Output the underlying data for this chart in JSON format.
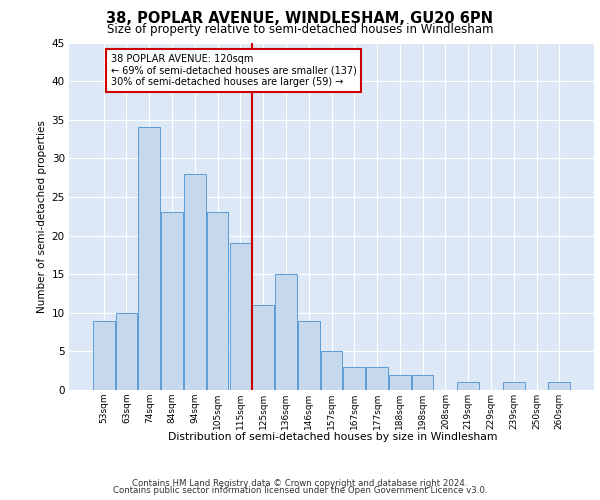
{
  "title": "38, POPLAR AVENUE, WINDLESHAM, GU20 6PN",
  "subtitle": "Size of property relative to semi-detached houses in Windlesham",
  "xlabel": "Distribution of semi-detached houses by size in Windlesham",
  "ylabel": "Number of semi-detached properties",
  "bins": [
    "53sqm",
    "63sqm",
    "74sqm",
    "84sqm",
    "94sqm",
    "105sqm",
    "115sqm",
    "125sqm",
    "136sqm",
    "146sqm",
    "157sqm",
    "167sqm",
    "177sqm",
    "188sqm",
    "198sqm",
    "208sqm",
    "219sqm",
    "229sqm",
    "239sqm",
    "250sqm",
    "260sqm"
  ],
  "values": [
    9,
    10,
    34,
    23,
    28,
    23,
    19,
    11,
    15,
    9,
    5,
    3,
    3,
    2,
    2,
    0,
    1,
    0,
    1,
    0,
    1
  ],
  "bar_color": "#c5d8ec",
  "bar_edge_color": "#5b9bd5",
  "vline_x_index": 6.5,
  "vline_color": "#cc0000",
  "annotation_line1": "38 POPLAR AVENUE: 120sqm",
  "annotation_line2": "← 69% of semi-detached houses are smaller (137)",
  "annotation_line3": "30% of semi-detached houses are larger (59) →",
  "annotation_box_color": "#cc0000",
  "ylim": [
    0,
    45
  ],
  "yticks": [
    0,
    5,
    10,
    15,
    20,
    25,
    30,
    35,
    40,
    45
  ],
  "background_color": "#dce8f5",
  "footer_line1": "Contains HM Land Registry data © Crown copyright and database right 2024.",
  "footer_line2": "Contains public sector information licensed under the Open Government Licence v3.0."
}
